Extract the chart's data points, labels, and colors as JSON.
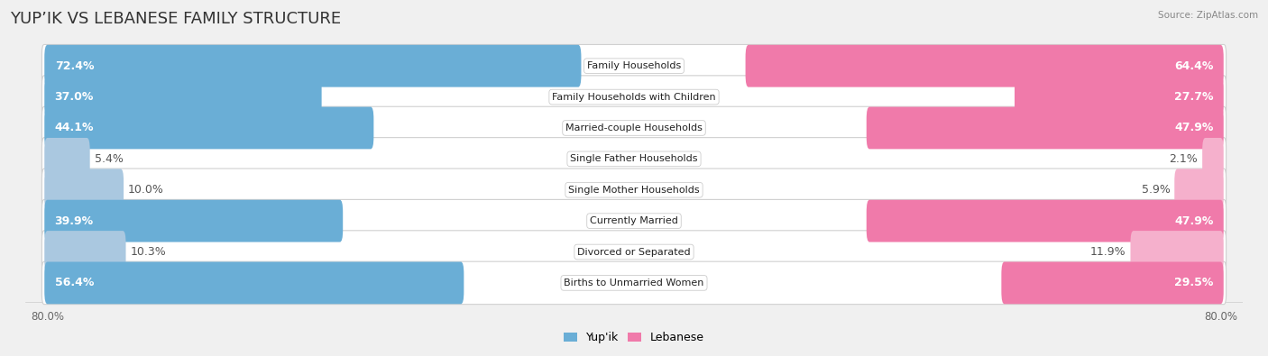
{
  "title": "YUP’IK VS LEBANESE FAMILY STRUCTURE",
  "source": "Source: ZipAtlas.com",
  "categories": [
    "Family Households",
    "Family Households with Children",
    "Married-couple Households",
    "Single Father Households",
    "Single Mother Households",
    "Currently Married",
    "Divorced or Separated",
    "Births to Unmarried Women"
  ],
  "yupik_values": [
    72.4,
    37.0,
    44.1,
    5.4,
    10.0,
    39.9,
    10.3,
    56.4
  ],
  "lebanese_values": [
    64.4,
    27.7,
    47.9,
    2.1,
    5.9,
    47.9,
    11.9,
    29.5
  ],
  "max_val": 80.0,
  "yupik_color_strong": "#6aaed6",
  "yupik_color_light": "#aac8e0",
  "lebanese_color_strong": "#f07aaa",
  "lebanese_color_light": "#f5b0cc",
  "bg_color": "#f0f0f0",
  "row_bg_color": "#ffffff",
  "row_border_color": "#d0d0d0",
  "title_fontsize": 13,
  "bar_label_fontsize": 9,
  "category_fontsize": 8,
  "legend_fontsize": 9,
  "axis_label_fontsize": 8.5,
  "strong_threshold": 25
}
